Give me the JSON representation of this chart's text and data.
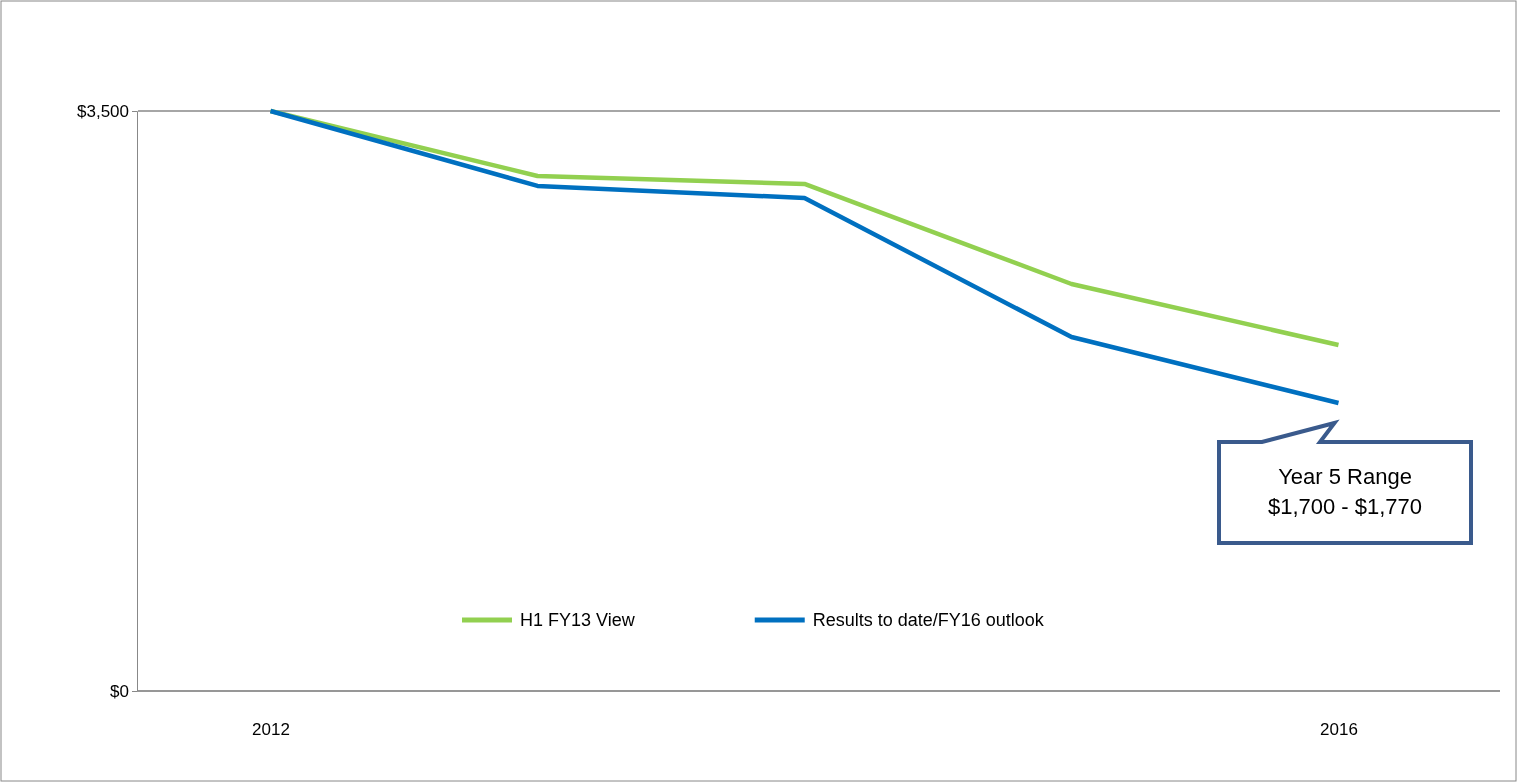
{
  "chart_data": {
    "type": "line",
    "categories": [
      "2012",
      null,
      null,
      null,
      "2016"
    ],
    "series": [
      {
        "name": "H1 FY13 View",
        "color": "#92d050",
        "values": [
          3500,
          3108,
          3060,
          2456,
          2088
        ]
      },
      {
        "name": "Results to date/FY16 outlook",
        "color": "#0070c0",
        "values": [
          3500,
          3048,
          2975,
          2136,
          1738
        ]
      }
    ],
    "ylim": [
      0,
      3500
    ],
    "yticks": [
      {
        "value": 0,
        "label": "$0"
      },
      {
        "value": 3500,
        "label": "$3,500"
      }
    ],
    "grid": "y",
    "legend": "bottom",
    "marker": "none",
    "line_style": "solid",
    "annotations": [
      {
        "text": "Year 5 Range\n$1,700 - $1,770",
        "x": "2016",
        "y": 1738
      }
    ]
  }
}
